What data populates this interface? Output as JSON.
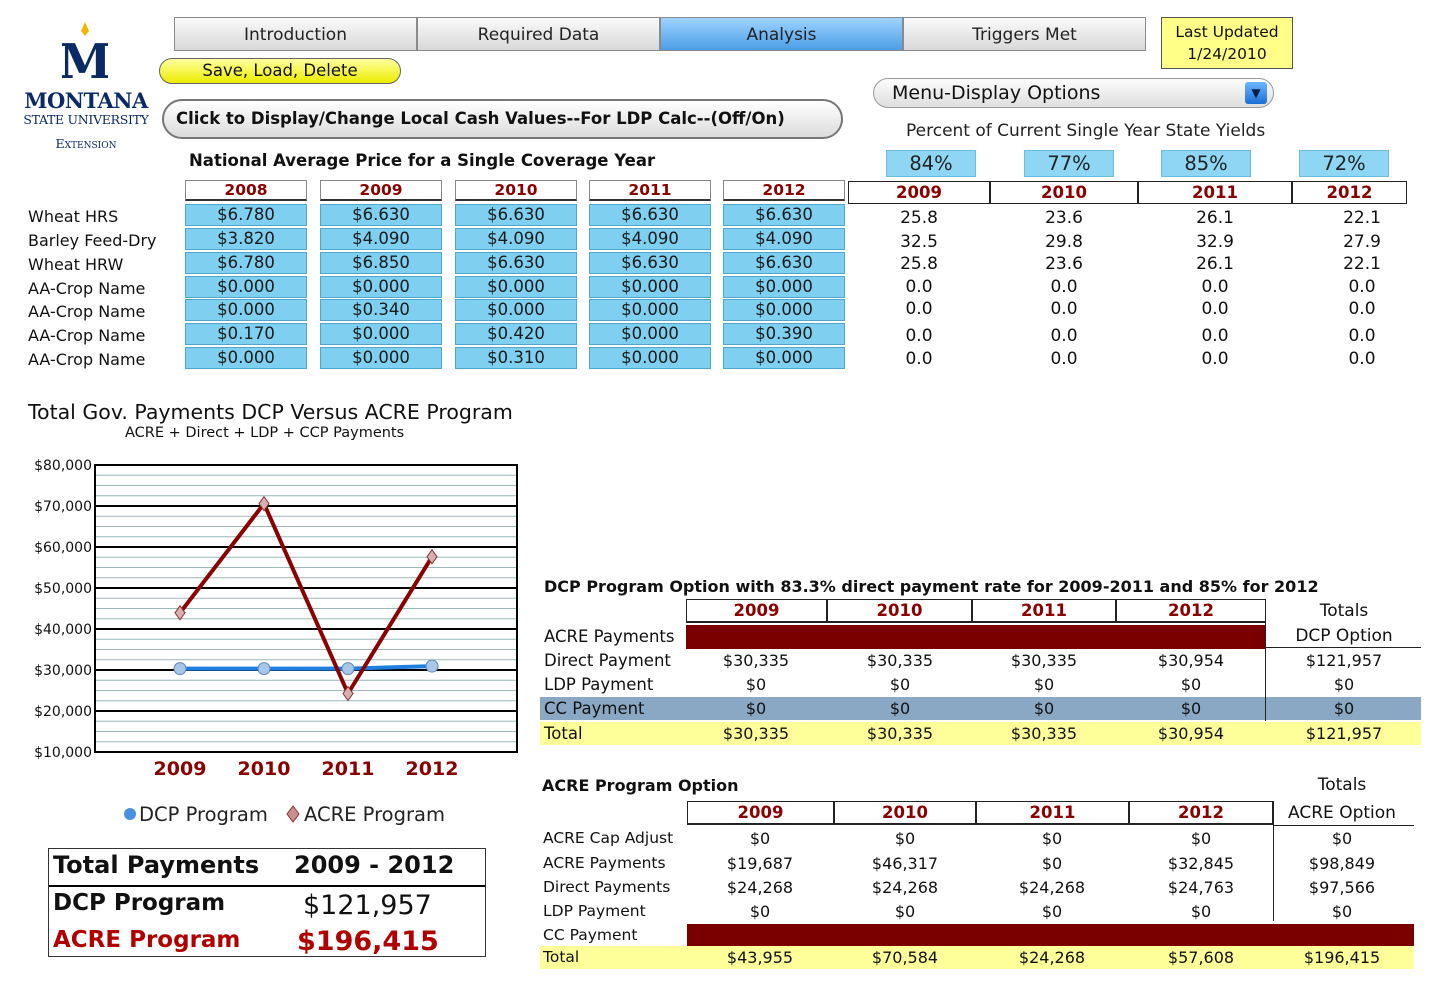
{
  "logo": {
    "line1": "MONTANA",
    "line2": "STATE UNIVERSITY",
    "line3": "Extension",
    "letter": "M"
  },
  "tabs": [
    "Introduction",
    "Required Data",
    "Analysis",
    "Triggers Met"
  ],
  "active_tab": "Analysis",
  "last_updated": {
    "label": "Last Updated",
    "date": "1/24/2010"
  },
  "save_button": "Save, Load, Delete",
  "cash_button": "Click to Display/Change Local Cash Values--For LDP Calc--(Off/On)",
  "menu": {
    "label": "Menu-Display Options",
    "arrow": "chevron-down-icon"
  },
  "price_section": {
    "title": "National Average Price for a Single Coverage Year",
    "years": [
      "2008",
      "2009",
      "2010",
      "2011",
      "2012"
    ],
    "crops": [
      "Wheat HRS",
      "Barley Feed-Dry",
      "Wheat HRW",
      "AA-Crop Name",
      "AA-Crop Name",
      "AA-Crop Name",
      "AA-Crop Name"
    ],
    "prices": [
      [
        "$6.780",
        "$6.630",
        "$6.630",
        "$6.630",
        "$6.630"
      ],
      [
        "$3.820",
        "$4.090",
        "$4.090",
        "$4.090",
        "$4.090"
      ],
      [
        "$6.780",
        "$6.850",
        "$6.630",
        "$6.630",
        "$6.630"
      ],
      [
        "$0.000",
        "$0.000",
        "$0.000",
        "$0.000",
        "$0.000"
      ],
      [
        "$0.000",
        "$0.340",
        "$0.000",
        "$0.000",
        "$0.000"
      ],
      [
        "$0.170",
        "$0.000",
        "$0.420",
        "$0.000",
        "$0.390"
      ],
      [
        "$0.000",
        "$0.000",
        "$0.310",
        "$0.000",
        "$0.000"
      ]
    ]
  },
  "yield_section": {
    "title": "Percent of Current Single Year State Yields",
    "percents": [
      "84%",
      "77%",
      "85%",
      "72%"
    ],
    "years": [
      "2009",
      "2010",
      "2011",
      "2012"
    ],
    "values": [
      [
        "25.8",
        "23.6",
        "26.1",
        "22.1"
      ],
      [
        "32.5",
        "29.8",
        "32.9",
        "27.9"
      ],
      [
        "25.8",
        "23.6",
        "26.1",
        "22.1"
      ],
      [
        "0.0",
        "0.0",
        "0.0",
        "0.0"
      ],
      [
        "0.0",
        "0.0",
        "0.0",
        "0.0"
      ],
      [
        "0.0",
        "0.0",
        "0.0",
        "0.0"
      ],
      [
        "0.0",
        "0.0",
        "0.0",
        "0.0"
      ]
    ]
  },
  "chart_data": {
    "type": "line",
    "title": "Total Gov. Payments DCP Versus ACRE Program",
    "subtitle": "ACRE + Direct + LDP + CCP Payments",
    "categories": [
      "2009",
      "2010",
      "2011",
      "2012"
    ],
    "series": [
      {
        "name": "DCP Program",
        "values": [
          30335,
          30335,
          30335,
          30954
        ],
        "color": "#1e7fe0"
      },
      {
        "name": "ACRE Program",
        "values": [
          43955,
          70584,
          24268,
          57608
        ],
        "color": "#8b0000"
      }
    ],
    "ylim": [
      10000,
      80000
    ],
    "yticks": [
      "$10,000",
      "$20,000",
      "$30,000",
      "$40,000",
      "$50,000",
      "$60,000",
      "$70,000",
      "$80,000"
    ],
    "legend_position": "bottom",
    "grid": true
  },
  "totals_box": {
    "header_left": "Total Payments",
    "header_right": "2009 - 2012",
    "dcp_label": "DCP Program",
    "dcp_value": "$121,957",
    "acre_label": "ACRE Program",
    "acre_value": "$196,415"
  },
  "dcp_table": {
    "title": "DCP Program Option with 83.3% direct payment rate for 2009-2011 and 85% for 2012",
    "years": [
      "2009",
      "2010",
      "2011",
      "2012"
    ],
    "totals_header": [
      "Totals",
      "DCP Option"
    ],
    "rows": [
      {
        "label": "ACRE Payments",
        "values": [
          "",
          "",
          "",
          ""
        ],
        "total": ""
      },
      {
        "label": "Direct Payment",
        "values": [
          "$30,335",
          "$30,335",
          "$30,335",
          "$30,954"
        ],
        "total": "$121,957"
      },
      {
        "label": "LDP Payment",
        "values": [
          "$0",
          "$0",
          "$0",
          "$0"
        ],
        "total": "$0"
      },
      {
        "label": "CC Payment",
        "values": [
          "$0",
          "$0",
          "$0",
          "$0"
        ],
        "total": "$0"
      },
      {
        "label": "Total",
        "values": [
          "$30,335",
          "$30,335",
          "$30,335",
          "$30,954"
        ],
        "total": "$121,957"
      }
    ]
  },
  "acre_table": {
    "title": "ACRE Program Option",
    "years": [
      "2009",
      "2010",
      "2011",
      "2012"
    ],
    "totals_header": [
      "Totals",
      "ACRE Option"
    ],
    "rows": [
      {
        "label": "ACRE Cap Adjust",
        "values": [
          "$0",
          "$0",
          "$0",
          "$0"
        ],
        "total": "$0"
      },
      {
        "label": "ACRE Payments",
        "values": [
          "$19,687",
          "$46,317",
          "$0",
          "$32,845"
        ],
        "total": "$98,849"
      },
      {
        "label": "Direct Payments",
        "values": [
          "$24,268",
          "$24,268",
          "$24,268",
          "$24,763"
        ],
        "total": "$97,566"
      },
      {
        "label": "LDP Payment",
        "values": [
          "$0",
          "$0",
          "$0",
          "$0"
        ],
        "total": "$0"
      },
      {
        "label": "CC Payment",
        "values": [
          "",
          "",
          "",
          ""
        ],
        "total": ""
      },
      {
        "label": "Total",
        "values": [
          "$43,955",
          "$70,584",
          "$24,268",
          "$57,608"
        ],
        "total": "$196,415"
      }
    ]
  },
  "colors": {
    "dark_red": "#7a0000",
    "light_blue": "#7fd0f0",
    "yellow_row": "#ffff99",
    "cc_row": "#8aa8c4",
    "accent_blue": "#1e7fe0"
  }
}
